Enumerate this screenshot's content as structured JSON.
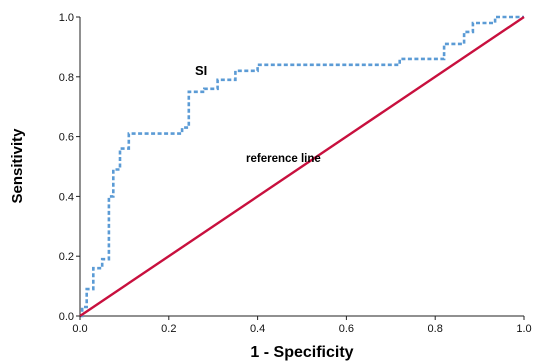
{
  "chart_data": {
    "type": "line",
    "xlabel": "1 - Specificity",
    "ylabel": "Sensitivity",
    "xlim": [
      0,
      1
    ],
    "ylim": [
      0,
      1
    ],
    "x_ticks": [
      "0.0",
      "0.2",
      "0.4",
      "0.6",
      "0.8",
      "1.0"
    ],
    "y_ticks": [
      "0.0",
      "0.2",
      "0.4",
      "0.6",
      "0.8",
      "1.0"
    ],
    "grid": false,
    "legend": "none",
    "annotations": [
      "SI",
      "reference line"
    ],
    "series": [
      {
        "name": "SI",
        "style": "dashed",
        "color": "#5b9bd5",
        "x": [
          0,
          0.005,
          0.005,
          0.015,
          0.015,
          0.03,
          0.03,
          0.05,
          0.05,
          0.065,
          0.065,
          0.075,
          0.075,
          0.09,
          0.09,
          0.11,
          0.11,
          0.23,
          0.23,
          0.245,
          0.245,
          0.28,
          0.28,
          0.31,
          0.31,
          0.35,
          0.35,
          0.4,
          0.4,
          0.72,
          0.72,
          0.82,
          0.82,
          0.865,
          0.865,
          0.885,
          0.885,
          0.935,
          0.935,
          1.0
        ],
        "y": [
          0,
          0,
          0.03,
          0.03,
          0.09,
          0.09,
          0.16,
          0.16,
          0.19,
          0.19,
          0.4,
          0.4,
          0.49,
          0.49,
          0.56,
          0.56,
          0.61,
          0.61,
          0.63,
          0.63,
          0.75,
          0.75,
          0.76,
          0.76,
          0.79,
          0.79,
          0.82,
          0.82,
          0.84,
          0.84,
          0.86,
          0.86,
          0.91,
          0.91,
          0.95,
          0.95,
          0.98,
          0.98,
          1.0,
          1.0
        ]
      },
      {
        "name": "reference line",
        "style": "solid",
        "color": "#c8103e",
        "x": [
          0,
          1
        ],
        "y": [
          0,
          1
        ]
      }
    ]
  }
}
